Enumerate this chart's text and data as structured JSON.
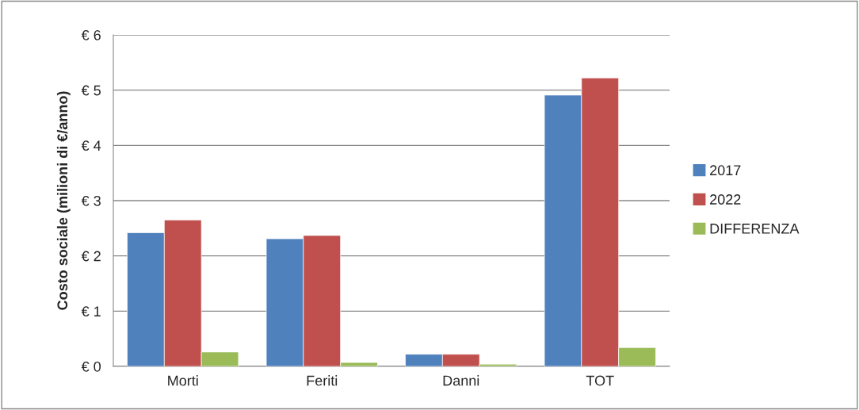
{
  "chart_data": {
    "type": "bar",
    "ylabel": "Costo sociale (milioni di €/anno)",
    "categories": [
      "Morti",
      "Feriti",
      "Danni",
      "TOT"
    ],
    "series": [
      {
        "name": "2017",
        "color": "#4f81bd",
        "values": [
          2.42,
          2.31,
          0.22,
          4.91
        ]
      },
      {
        "name": "2022",
        "color": "#c0504d",
        "values": [
          2.65,
          2.37,
          0.22,
          5.22
        ]
      },
      {
        "name": "DIFFERENZA",
        "color": "#9bbb59",
        "values": [
          0.26,
          0.07,
          0.04,
          0.34
        ]
      }
    ],
    "ylim": [
      0,
      6
    ],
    "yticks": [
      {
        "value": 0,
        "label": "€ 0"
      },
      {
        "value": 1,
        "label": "€ 1"
      },
      {
        "value": 2,
        "label": "€ 2"
      },
      {
        "value": 3,
        "label": "€ 3"
      },
      {
        "value": 4,
        "label": "€ 4"
      },
      {
        "value": 5,
        "label": "€ 5"
      },
      {
        "value": 6,
        "label": "€ 6"
      }
    ],
    "grid": "y",
    "legend": "right"
  }
}
